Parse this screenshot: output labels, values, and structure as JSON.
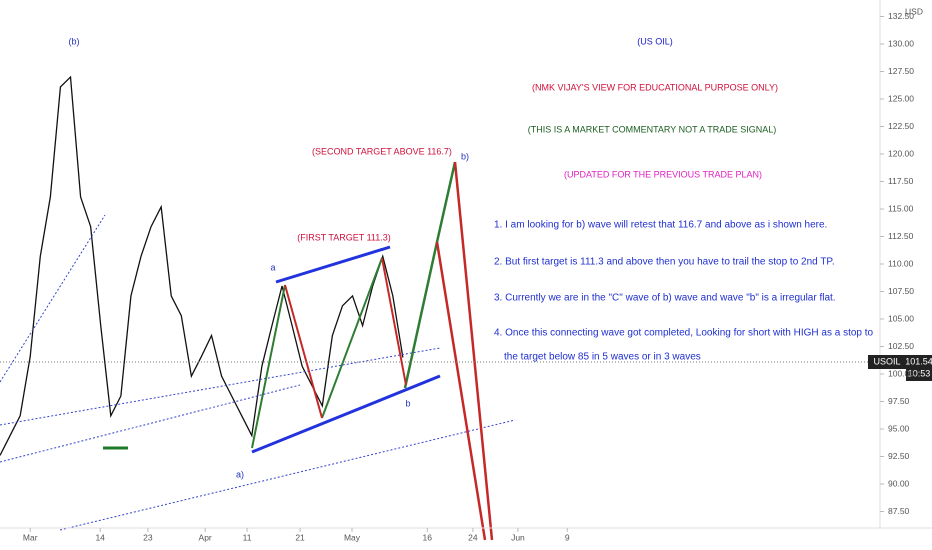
{
  "chart_data": {
    "type": "line",
    "title": "(US OIL)",
    "subtitle": "(NMK VIJAY'S VIEW FOR EDUCATIONAL PURPOSE ONLY)",
    "disclaimer": "(THIS IS A MARKET COMMENTARY NOT A TRADE SIGNAL)",
    "update_note": "(UPDATED FOR THE PREVIOUS TRADE PLAN)",
    "notes": [
      "1. I am looking for b) wave will retest that 116.7 and above as i shown here.",
      "2. But first target is 111.3 and above then you have to trail the stop to 2nd TP.",
      "3. Currently we are in the \"C\" wave of b) wave and wave \"b\" is a irregular flat.",
      "4. Once this connecting wave got completed, Looking for short with HIGH as a stop to",
      "the target below 85 in 5 waves or in 3 waves"
    ],
    "annotations": {
      "second_target": "(SECOND TARGET ABOVE 116.7)",
      "first_target": "(FIRST TARGET 111.3)",
      "wave_b_paren": "(b)",
      "wave_a": "a",
      "wave_a_close": "a)",
      "wave_b": "b",
      "wave_b_close": "b)"
    },
    "currency": "USD",
    "symbol": "USOIL",
    "last_price_label": "101.54",
    "countdown": "10:53",
    "x": [
      0,
      1.9,
      3.8,
      5.7,
      7.6,
      9.5,
      11.4,
      13.3,
      15.2,
      17.1,
      19,
      20.9,
      22.8,
      24.7,
      26.6,
      28.5,
      30.4,
      32.3,
      34.2,
      36.1,
      38,
      39.9,
      41.8,
      43.7,
      45.6,
      47.5,
      49.4,
      51.3,
      53.2,
      55.1,
      57,
      58.9,
      60.8,
      62.7,
      64.6,
      66.5,
      68.4,
      70.3,
      72.2,
      74.1,
      76
    ],
    "series": [
      {
        "name": "USOIL",
        "color": "#111111",
        "values": [
          92.6,
          94.4,
          96.2,
          101.6,
          110.7,
          116.1,
          126.1,
          127.0,
          116.1,
          113.4,
          104.4,
          96.2,
          98.0,
          107.1,
          110.7,
          113.4,
          115.2,
          107.1,
          105.3,
          99.8,
          101.6,
          103.5,
          99.8,
          98.0,
          96.2,
          94.4,
          100.7,
          104.4,
          108.0,
          104.4,
          100.7,
          98.9,
          97.1,
          103.5,
          106.2,
          107.1,
          104.4,
          108.0,
          110.7,
          107.1,
          101.5
        ]
      }
    ],
    "xlim": [
      0,
      166
    ],
    "xticks": [
      {
        "value": 5.7,
        "label": "Mar"
      },
      {
        "value": 18.9,
        "label": "14"
      },
      {
        "value": 27.9,
        "label": "23"
      },
      {
        "value": 38.7,
        "label": "Apr"
      },
      {
        "value": 46.6,
        "label": "11"
      },
      {
        "value": 56.6,
        "label": "21"
      },
      {
        "value": 66.4,
        "label": "May"
      },
      {
        "value": 80.6,
        "label": "16"
      },
      {
        "value": 89.2,
        "label": "24"
      },
      {
        "value": 97.7,
        "label": "Jun"
      },
      {
        "value": 107,
        "label": "9"
      }
    ],
    "ylim": [
      86,
      134
    ],
    "yticks": [
      {
        "value": 87.5,
        "label": "87.50"
      },
      {
        "value": 90,
        "label": "90.00"
      },
      {
        "value": 92.5,
        "label": "92.50"
      },
      {
        "value": 95,
        "label": "95.00"
      },
      {
        "value": 97.5,
        "label": "97.50"
      },
      {
        "value": 100,
        "label": "100.00"
      },
      {
        "value": 102.5,
        "label": "102.50"
      },
      {
        "value": 105,
        "label": "105.00"
      },
      {
        "value": 107.5,
        "label": "107.50"
      },
      {
        "value": 110,
        "label": "110.00"
      },
      {
        "value": 112.5,
        "label": "112.50"
      },
      {
        "value": 115,
        "label": "115.00"
      },
      {
        "value": 117.5,
        "label": "117.50"
      },
      {
        "value": 120,
        "label": "120.00"
      },
      {
        "value": 122.5,
        "label": "122.50"
      },
      {
        "value": 125,
        "label": "125.00"
      },
      {
        "value": 127.5,
        "label": "127.50"
      },
      {
        "value": 130,
        "label": "130.00"
      },
      {
        "value": 132.5,
        "label": "132.50"
      }
    ]
  }
}
